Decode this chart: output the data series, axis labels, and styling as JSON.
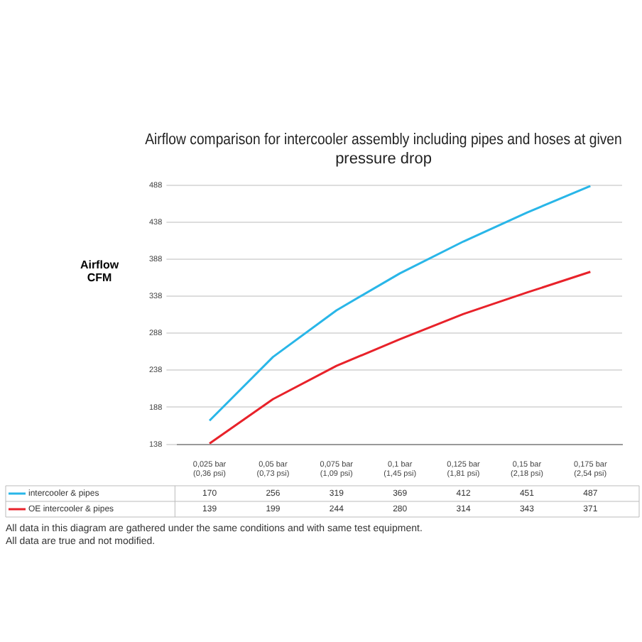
{
  "chart_data": {
    "type": "line",
    "title": "Airflow comparison for intercooler assembly including pipes and hoses at given pressure drop",
    "ylabel": "Airflow CFM",
    "categories": [
      "0,025 bar (0,36 psi)",
      "0,05 bar (0,73 psi)",
      "0,075 bar (1,09 psi)",
      "0,1 bar (1,45 psi)",
      "0,125 bar (1,81 psi)",
      "0,15 bar (2,18 psi)",
      "0,175 bar (2,54 psi)"
    ],
    "series": [
      {
        "name": "intercooler & pipes",
        "color": "#29b6e8",
        "values": [
          170,
          256,
          319,
          369,
          412,
          451,
          487
        ]
      },
      {
        "name": "OE intercooler & pipes",
        "color": "#e8222a",
        "values": [
          139,
          199,
          244,
          280,
          314,
          343,
          371
        ]
      }
    ],
    "ylim": [
      138,
      488
    ],
    "yticks": [
      138,
      188,
      238,
      288,
      338,
      388,
      438,
      488
    ],
    "grid": "y",
    "legend": "bottom",
    "data_labels": true,
    "marker": "none",
    "annotations": [
      "All data in this diagram are gathered under the same conditions and with same test equipment.",
      "All data are true and not modified."
    ]
  }
}
